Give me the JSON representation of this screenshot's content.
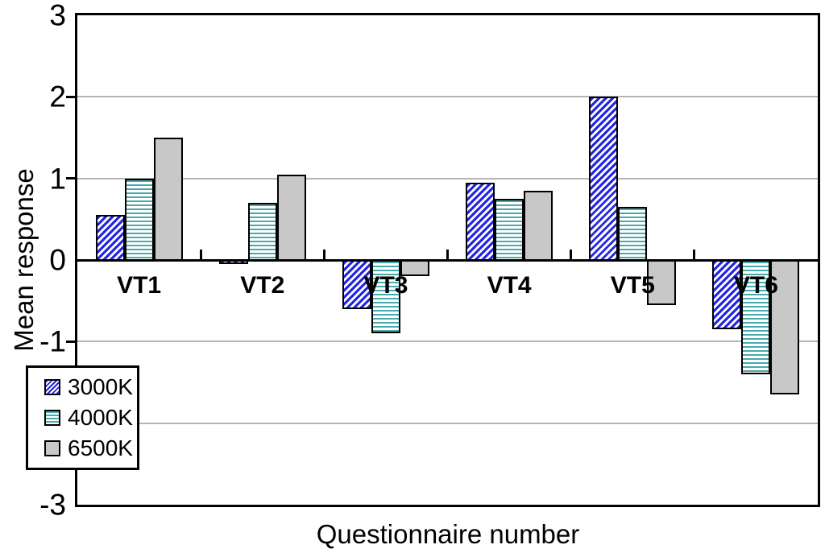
{
  "chart_data": {
    "type": "bar",
    "title": "",
    "xlabel": "Questionnaire number",
    "ylabel": "Mean response",
    "categories": [
      "VT1",
      "VT2",
      "VT3",
      "VT4",
      "VT5",
      "VT6"
    ],
    "series": [
      {
        "name": "3000K",
        "pattern": "diagonal-hatch",
        "color": "#2626e0",
        "values": [
          0.55,
          -0.05,
          -0.6,
          0.95,
          2.0,
          -0.85
        ]
      },
      {
        "name": "4000K",
        "pattern": "horizontal-lines",
        "color": "#4aa9ad",
        "values": [
          1.0,
          0.7,
          -0.9,
          0.75,
          0.65,
          -1.4
        ]
      },
      {
        "name": "6500K",
        "pattern": "solid",
        "color": "#c8c8c8",
        "values": [
          1.5,
          1.05,
          -0.2,
          0.85,
          -0.55,
          -1.65
        ]
      }
    ],
    "ylim": [
      -3,
      3
    ],
    "yticks": [
      3,
      2,
      1,
      0,
      -1,
      -2,
      -3
    ],
    "grid": true,
    "legend_position": "inside-bottom-left",
    "category_labels_position": "below-zero-line"
  },
  "colors": {
    "axis": "#000000",
    "gridline": "#b5b5b5",
    "plot_background": "#ffffff",
    "series_3000K": "#2626e0",
    "series_4000K": "#4aa9ad",
    "series_6500K": "#c8c8c8"
  }
}
